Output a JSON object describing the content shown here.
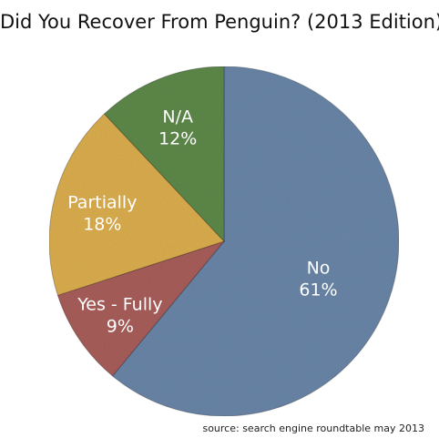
{
  "chart_data": {
    "type": "pie",
    "title": "Did You Recover From Penguin? (2013 Edition)",
    "source": "source: search engine roundtable may 2013",
    "start_angle_deg": 0,
    "direction": "clockwise",
    "slices": [
      {
        "label": "No",
        "percent_label": "61%",
        "value": 61,
        "color": "#6a86a8"
      },
      {
        "label": "Yes - Fully",
        "percent_label": "9%",
        "value": 9,
        "color": "#a95e5c"
      },
      {
        "label": "Partially",
        "percent_label": "18%",
        "value": 18,
        "color": "#dcae4f"
      },
      {
        "label": "N/A",
        "percent_label": "12%",
        "value": 12,
        "color": "#5f8a4c"
      }
    ]
  }
}
